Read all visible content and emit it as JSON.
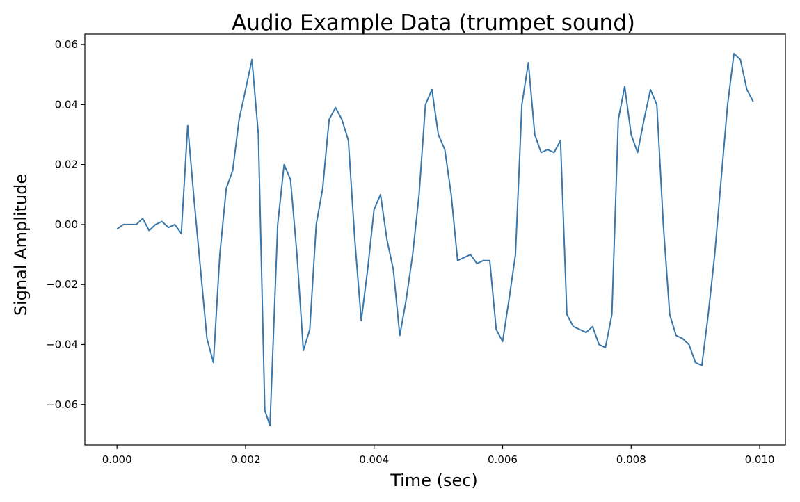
{
  "chart_data": {
    "type": "line",
    "title": "Audio Example Data (trumpet sound)",
    "xlabel": "Time (sec)",
    "ylabel": "Signal Amplitude",
    "xlim": [
      -0.0005,
      0.0104
    ],
    "ylim": [
      -0.0735,
      0.0635
    ],
    "grid": false,
    "xticks": [
      {
        "value": 0.0,
        "label": "0.000"
      },
      {
        "value": 0.002,
        "label": "0.002"
      },
      {
        "value": 0.004,
        "label": "0.004"
      },
      {
        "value": 0.006,
        "label": "0.006"
      },
      {
        "value": 0.008,
        "label": "0.008"
      },
      {
        "value": 0.01,
        "label": "0.010"
      }
    ],
    "yticks": [
      {
        "value": 0.06,
        "label": "0.06"
      },
      {
        "value": 0.04,
        "label": "0.04"
      },
      {
        "value": 0.02,
        "label": "0.02"
      },
      {
        "value": 0.0,
        "label": "0.00"
      },
      {
        "value": -0.02,
        "label": "−0.02"
      },
      {
        "value": -0.04,
        "label": "−0.04"
      },
      {
        "value": -0.06,
        "label": "−0.06"
      }
    ],
    "series": [
      {
        "name": "trumpet",
        "color": "#3776ab",
        "x": [
          0.0,
          0.0001,
          0.0002,
          0.0003,
          0.0004,
          0.0005,
          0.0006,
          0.0007,
          0.0008,
          0.0009,
          0.001,
          0.00105,
          0.0011,
          0.0012,
          0.0013,
          0.0014,
          0.0015,
          0.0016,
          0.0017,
          0.0018,
          0.0019,
          0.002,
          0.0021,
          0.0022,
          0.0023,
          0.00238,
          0.0025,
          0.0026,
          0.0027,
          0.0028,
          0.0029,
          0.003,
          0.0031,
          0.0032,
          0.0033,
          0.0034,
          0.0035,
          0.0036,
          0.0037,
          0.0038,
          0.0039,
          0.004,
          0.0041,
          0.0042,
          0.0043,
          0.0044,
          0.0045,
          0.0046,
          0.0047,
          0.0048,
          0.0049,
          0.005,
          0.0051,
          0.0052,
          0.0053,
          0.0054,
          0.0055,
          0.0056,
          0.0057,
          0.0058,
          0.0059,
          0.006,
          0.0061,
          0.0062,
          0.0063,
          0.0064,
          0.0065,
          0.0066,
          0.0067,
          0.0068,
          0.0069,
          0.007,
          0.0071,
          0.0072,
          0.0073,
          0.0074,
          0.0075,
          0.0076,
          0.0077,
          0.0078,
          0.0079,
          0.008,
          0.0081,
          0.0082,
          0.0083,
          0.0084,
          0.0085,
          0.0086,
          0.0087,
          0.0088,
          0.0089,
          0.009,
          0.0091,
          0.0092,
          0.0093,
          0.0094,
          0.0095,
          0.0096,
          0.0097,
          0.0098,
          0.0099
        ],
        "y": [
          -0.0015,
          0.0,
          0.0,
          0.0,
          0.002,
          -0.002,
          0.0,
          0.001,
          -0.001,
          0.0,
          -0.003,
          0.015,
          0.033,
          0.008,
          -0.015,
          -0.038,
          -0.046,
          -0.01,
          0.012,
          0.018,
          0.035,
          0.045,
          0.055,
          0.03,
          -0.062,
          -0.067,
          0.0,
          0.02,
          0.015,
          -0.01,
          -0.042,
          -0.035,
          0.0,
          0.012,
          0.035,
          0.039,
          0.035,
          0.028,
          -0.005,
          -0.032,
          -0.015,
          0.005,
          0.01,
          -0.005,
          -0.015,
          -0.037,
          -0.025,
          -0.01,
          0.01,
          0.04,
          0.045,
          0.03,
          0.025,
          0.01,
          -0.012,
          -0.011,
          -0.01,
          -0.013,
          -0.012,
          -0.012,
          -0.035,
          -0.039,
          -0.025,
          -0.01,
          0.04,
          0.054,
          0.03,
          0.024,
          0.025,
          0.024,
          0.028,
          -0.03,
          -0.034,
          -0.035,
          -0.036,
          -0.034,
          -0.04,
          -0.041,
          -0.03,
          0.035,
          0.046,
          0.03,
          0.024,
          0.035,
          0.045,
          0.04,
          0.0,
          -0.03,
          -0.037,
          -0.038,
          -0.04,
          -0.046,
          -0.047,
          -0.03,
          -0.01,
          0.015,
          0.04,
          0.057,
          0.055,
          0.045,
          0.041
        ]
      }
    ]
  }
}
